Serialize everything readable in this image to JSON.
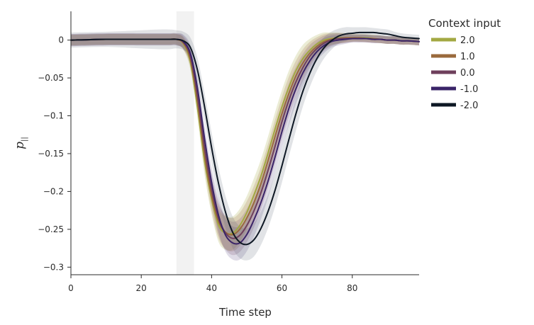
{
  "chart_data": {
    "type": "line",
    "xlabel": "Time step",
    "ylabel": "p",
    "ylabel_subscript": "||",
    "xlim": [
      0,
      99
    ],
    "ylim": [
      -0.31,
      0.038
    ],
    "xticks": [
      0,
      20,
      40,
      60,
      80
    ],
    "yticks": [
      0,
      -0.05,
      -0.1,
      -0.15,
      -0.2,
      -0.25,
      -0.3
    ],
    "ytick_labels": [
      "0",
      "−0.05",
      "−0.1",
      "−0.15",
      "−0.2",
      "−0.25",
      "−0.3"
    ],
    "grid": false,
    "shaded_interval": [
      30,
      35
    ],
    "legend": {
      "title": "Context input",
      "placement": "right"
    },
    "x": [
      0,
      10,
      20,
      25,
      28,
      30,
      32,
      34,
      36,
      38,
      40,
      42,
      44,
      46,
      48,
      50,
      52,
      54,
      56,
      58,
      60,
      62,
      64,
      66,
      68,
      70,
      72,
      74,
      76,
      78,
      80,
      82,
      84,
      86,
      88,
      90,
      92,
      94,
      96,
      99
    ],
    "series": [
      {
        "name": "2.0",
        "color": "#a3a842",
        "values": [
          0,
          0.001,
          0.001,
          0.001,
          0.001,
          0.001,
          -0.005,
          -0.03,
          -0.09,
          -0.16,
          -0.21,
          -0.245,
          -0.255,
          -0.255,
          -0.245,
          -0.228,
          -0.205,
          -0.18,
          -0.15,
          -0.118,
          -0.088,
          -0.062,
          -0.04,
          -0.024,
          -0.013,
          -0.005,
          0.0,
          0.002,
          0.003,
          0.003,
          0.003,
          0.003,
          0.003,
          0.002,
          0.001,
          0.0,
          0.0,
          -0.001,
          -0.001,
          -0.002
        ],
        "band": [
          0.007,
          0.007,
          0.007,
          0.007,
          0.007,
          0.007,
          0.008,
          0.01,
          0.014,
          0.018,
          0.02,
          0.022,
          0.022,
          0.022,
          0.022,
          0.022,
          0.022,
          0.022,
          0.022,
          0.022,
          0.022,
          0.022,
          0.02,
          0.018,
          0.015,
          0.012,
          0.01,
          0.008,
          0.007,
          0.006,
          0.005,
          0.005,
          0.005,
          0.005,
          0.005,
          0.005,
          0.005,
          0.005,
          0.005,
          0.005
        ]
      },
      {
        "name": "1.0",
        "color": "#9a6a3c",
        "values": [
          0,
          0.001,
          0.001,
          0.001,
          0.001,
          0.001,
          -0.004,
          -0.026,
          -0.082,
          -0.152,
          -0.205,
          -0.24,
          -0.254,
          -0.257,
          -0.25,
          -0.235,
          -0.215,
          -0.19,
          -0.16,
          -0.128,
          -0.097,
          -0.07,
          -0.047,
          -0.03,
          -0.017,
          -0.008,
          -0.002,
          0.001,
          0.002,
          0.003,
          0.003,
          0.003,
          0.002,
          0.002,
          0.001,
          0.0,
          0.0,
          -0.001,
          -0.001,
          -0.002
        ],
        "band": [
          0.007,
          0.007,
          0.007,
          0.007,
          0.007,
          0.007,
          0.008,
          0.01,
          0.014,
          0.018,
          0.02,
          0.022,
          0.022,
          0.022,
          0.022,
          0.022,
          0.022,
          0.022,
          0.022,
          0.022,
          0.022,
          0.022,
          0.02,
          0.018,
          0.015,
          0.012,
          0.01,
          0.008,
          0.007,
          0.006,
          0.005,
          0.005,
          0.005,
          0.005,
          0.005,
          0.005,
          0.005,
          0.005,
          0.005,
          0.005
        ]
      },
      {
        "name": "0.0",
        "color": "#6e3f5c",
        "values": [
          0,
          0.001,
          0.001,
          0.001,
          0.001,
          0.001,
          -0.003,
          -0.022,
          -0.074,
          -0.142,
          -0.197,
          -0.236,
          -0.255,
          -0.262,
          -0.258,
          -0.245,
          -0.226,
          -0.202,
          -0.173,
          -0.141,
          -0.108,
          -0.079,
          -0.055,
          -0.036,
          -0.021,
          -0.011,
          -0.004,
          0.0,
          0.002,
          0.002,
          0.002,
          0.002,
          0.002,
          0.001,
          0.001,
          0.0,
          0.0,
          -0.001,
          -0.001,
          -0.002
        ],
        "band": [
          0.008,
          0.008,
          0.008,
          0.008,
          0.008,
          0.008,
          0.009,
          0.011,
          0.015,
          0.018,
          0.02,
          0.022,
          0.022,
          0.022,
          0.022,
          0.022,
          0.022,
          0.022,
          0.022,
          0.022,
          0.022,
          0.022,
          0.02,
          0.018,
          0.015,
          0.012,
          0.01,
          0.008,
          0.007,
          0.006,
          0.005,
          0.005,
          0.005,
          0.005,
          0.005,
          0.005,
          0.005,
          0.005,
          0.005,
          0.005
        ]
      },
      {
        "name": "-1.0",
        "color": "#3a2468",
        "values": [
          0,
          0.001,
          0.001,
          0.001,
          0.001,
          0.001,
          -0.002,
          -0.018,
          -0.064,
          -0.13,
          -0.188,
          -0.232,
          -0.258,
          -0.268,
          -0.268,
          -0.257,
          -0.238,
          -0.215,
          -0.187,
          -0.155,
          -0.121,
          -0.09,
          -0.064,
          -0.043,
          -0.027,
          -0.015,
          -0.007,
          -0.002,
          0.0,
          0.001,
          0.002,
          0.002,
          0.002,
          0.001,
          0.001,
          0.0,
          0.0,
          -0.001,
          -0.001,
          -0.002
        ],
        "band": [
          0.008,
          0.008,
          0.008,
          0.008,
          0.008,
          0.008,
          0.009,
          0.011,
          0.015,
          0.018,
          0.02,
          0.022,
          0.022,
          0.022,
          0.022,
          0.022,
          0.022,
          0.022,
          0.022,
          0.022,
          0.022,
          0.022,
          0.02,
          0.018,
          0.015,
          0.012,
          0.01,
          0.008,
          0.007,
          0.006,
          0.005,
          0.005,
          0.005,
          0.005,
          0.005,
          0.005,
          0.005,
          0.005,
          0.005,
          0.005
        ]
      },
      {
        "name": "-2.0",
        "color": "#0e1824",
        "values": [
          0,
          0.001,
          0.001,
          0.001,
          0.001,
          0.001,
          -0.001,
          -0.01,
          -0.04,
          -0.088,
          -0.142,
          -0.19,
          -0.228,
          -0.254,
          -0.267,
          -0.27,
          -0.264,
          -0.249,
          -0.227,
          -0.199,
          -0.166,
          -0.131,
          -0.097,
          -0.067,
          -0.043,
          -0.024,
          -0.01,
          -0.001,
          0.005,
          0.008,
          0.009,
          0.01,
          0.01,
          0.01,
          0.009,
          0.008,
          0.006,
          0.004,
          0.003,
          0.002
        ],
        "band": [
          0.01,
          0.01,
          0.012,
          0.013,
          0.013,
          0.012,
          0.012,
          0.013,
          0.016,
          0.018,
          0.02,
          0.021,
          0.021,
          0.021,
          0.021,
          0.021,
          0.022,
          0.022,
          0.022,
          0.022,
          0.022,
          0.022,
          0.022,
          0.02,
          0.018,
          0.016,
          0.014,
          0.012,
          0.01,
          0.009,
          0.008,
          0.007,
          0.007,
          0.006,
          0.006,
          0.006,
          0.005,
          0.005,
          0.005,
          0.005
        ]
      }
    ]
  }
}
